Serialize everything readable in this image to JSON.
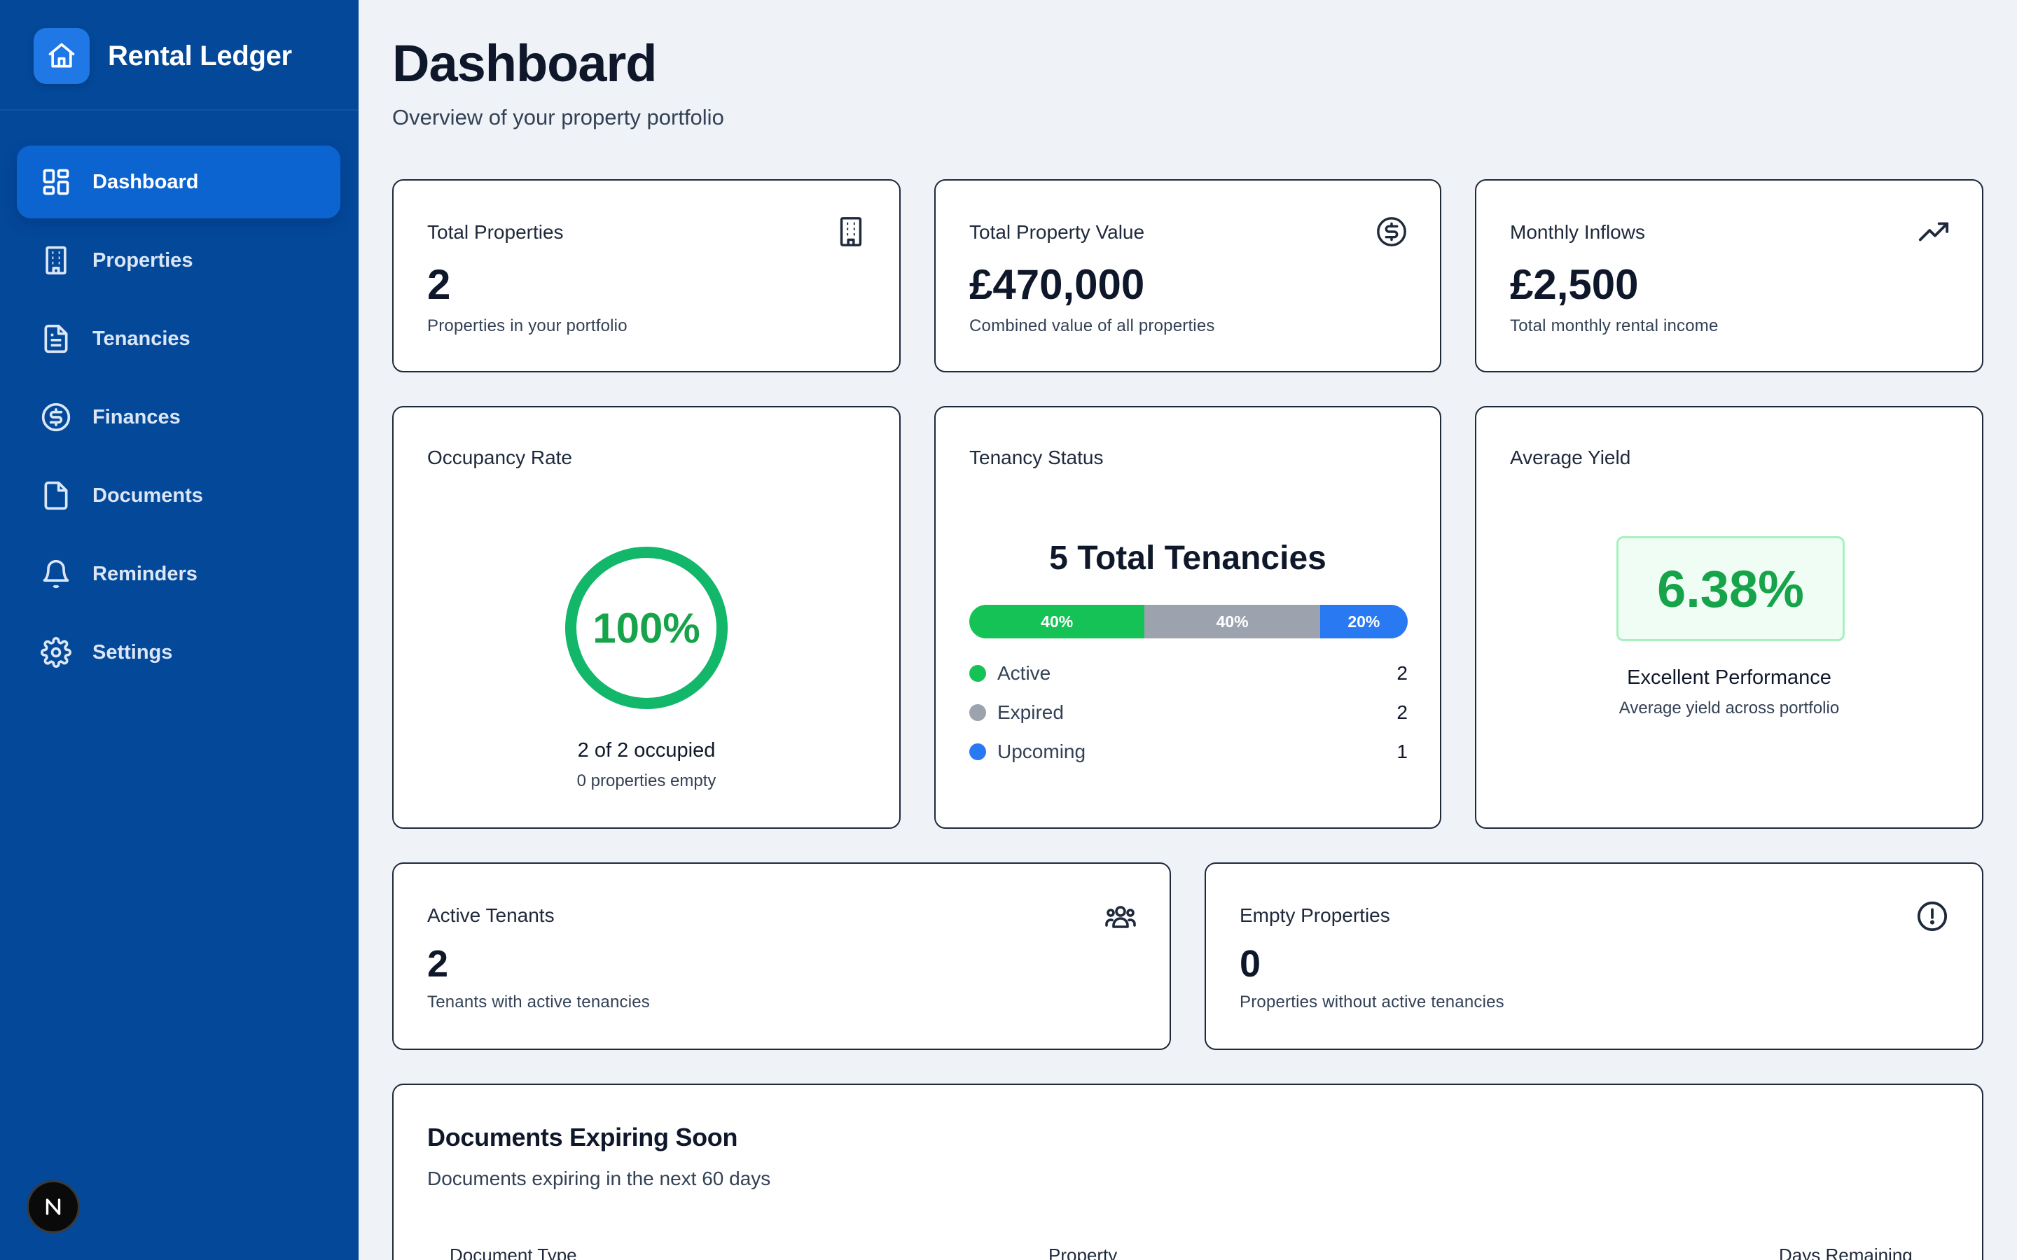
{
  "app": {
    "name": "Rental Ledger",
    "avatar_letter": "N"
  },
  "sidebar": {
    "items": [
      {
        "label": "Dashboard",
        "icon": "dashboard-grid-icon",
        "active": true
      },
      {
        "label": "Properties",
        "icon": "building-icon"
      },
      {
        "label": "Tenancies",
        "icon": "file-text-icon"
      },
      {
        "label": "Finances",
        "icon": "dollar-circle-icon"
      },
      {
        "label": "Documents",
        "icon": "file-icon"
      },
      {
        "label": "Reminders",
        "icon": "bell-icon"
      },
      {
        "label": "Settings",
        "icon": "gear-icon"
      }
    ]
  },
  "header": {
    "title": "Dashboard",
    "subtitle": "Overview of your property portfolio"
  },
  "stats": {
    "total_properties": {
      "label": "Total Properties",
      "value": "2",
      "sub": "Properties in your portfolio"
    },
    "total_value": {
      "label": "Total Property Value",
      "value": "£470,000",
      "sub": "Combined value of all properties"
    },
    "monthly_inflows": {
      "label": "Monthly Inflows",
      "value": "£2,500",
      "sub": "Total monthly rental income"
    }
  },
  "occupancy": {
    "label": "Occupancy Rate",
    "percent_text": "100%",
    "percent": 100,
    "occupied_text": "2 of 2 occupied",
    "empty_text": "0 properties empty"
  },
  "tenancy": {
    "label": "Tenancy Status",
    "total_text": "5 Total Tenancies",
    "segments": [
      {
        "name": "Active",
        "pct": 40,
        "pct_text": "40%",
        "count": "2",
        "color": "#14c256"
      },
      {
        "name": "Expired",
        "pct": 40,
        "pct_text": "40%",
        "count": "2",
        "color": "#9ca3af"
      },
      {
        "name": "Upcoming",
        "pct": 20,
        "pct_text": "20%",
        "count": "1",
        "color": "#2979f2"
      }
    ]
  },
  "yield": {
    "label": "Average Yield",
    "value": "6.38%",
    "rating": "Excellent Performance",
    "sub": "Average yield across portfolio"
  },
  "tenants": {
    "label": "Active Tenants",
    "value": "2",
    "sub": "Tenants with active tenancies"
  },
  "empty": {
    "label": "Empty Properties",
    "value": "0",
    "sub": "Properties without active tenancies"
  },
  "documents": {
    "title": "Documents Expiring Soon",
    "subtitle": "Documents expiring in the next 60 days",
    "columns": [
      "Document Type",
      "Property",
      "Days Remaining"
    ]
  },
  "colors": {
    "sidebar": "#04489a",
    "accent": "#0c64d0",
    "success": "#16a34a",
    "ring": "#12b76a"
  }
}
